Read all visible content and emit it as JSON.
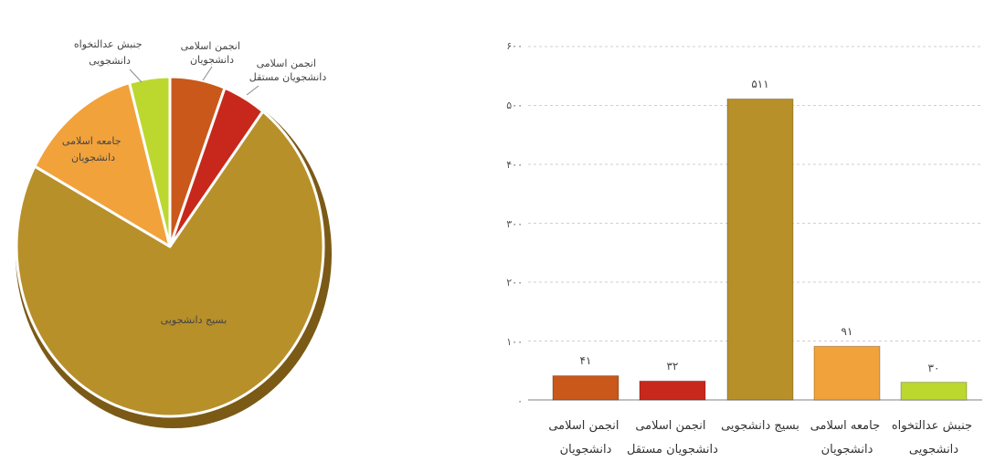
{
  "chart_data": [
    {
      "type": "pie",
      "categories": [
        "انجمن اسلامی دانشجویان",
        "انجمن اسلامی دانشجویان مستقل",
        "بسیج دانشجویی",
        "جامعه اسلامی دانشجویان",
        "جنبش عدالتخواه دانشجویی"
      ],
      "values": [
        41,
        32,
        511,
        91,
        30
      ],
      "colors": [
        "#c9581a",
        "#c8281c",
        "#b8902a",
        "#f2a23a",
        "#bcd82f"
      ],
      "labels": {
        "c0": [
          "انجمن اسلامی",
          "دانشجویان"
        ],
        "c1": [
          "انجمن اسلامی",
          "دانشجویان مستقل"
        ],
        "c2": [
          "بسیج دانشجویی"
        ],
        "c3": [
          "جامعه اسلامی",
          "دانشجویان"
        ],
        "c4": [
          "جنبش عدالتخواه",
          "دانشجویی"
        ]
      }
    },
    {
      "type": "bar",
      "categories": [
        "انجمن اسلامی دانشجویان",
        "انجمن اسلامی دانشجویان مستقل",
        "بسیج دانشجویی",
        "جامعه اسلامی دانشجویان",
        "جنبش عدالتخواه دانشجویی"
      ],
      "category_lines": {
        "c0": [
          "انجمن اسلامی",
          "دانشجویان"
        ],
        "c1": [
          "انجمن اسلامی",
          "دانشجویان مستقل"
        ],
        "c2": [
          "بسیج دانشجویی"
        ],
        "c3": [
          "جامعه اسلامی",
          "دانشجویان"
        ],
        "c4": [
          "جنبش عدالتخواه",
          "دانشجویی"
        ]
      },
      "values": [
        41,
        32,
        511,
        91,
        30
      ],
      "value_labels": [
        "۴۱",
        "۳۲",
        "۵۱۱",
        "۹۱",
        "۳۰"
      ],
      "colors": [
        "#c9581a",
        "#c8281c",
        "#b8902a",
        "#f2a23a",
        "#bcd82f"
      ],
      "ylim": [
        0,
        600
      ],
      "yticks": [
        0,
        100,
        200,
        300,
        400,
        500,
        600
      ],
      "ytick_labels": {
        "t0": "۰",
        "t1": "۱۰۰",
        "t2": "۲۰۰",
        "t3": "۳۰۰",
        "t4": "۴۰۰",
        "t5": "۵۰۰",
        "t6": "۶۰۰"
      },
      "grid": true
    }
  ]
}
